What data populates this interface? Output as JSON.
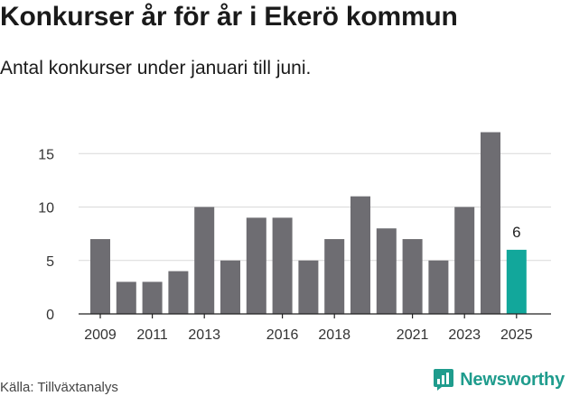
{
  "title": "Konkurser år för år i Ekerö kommun",
  "subtitle": "Antal konkurser under januari till juni.",
  "source": "Källa: Tillväxtanalys",
  "brand": {
    "name": "Newsworthy",
    "icon": "newsworthy-logo-icon"
  },
  "colors": {
    "bar": "#6e6d72",
    "highlight": "#12a79b",
    "grid": "#d9d9d9",
    "axis": "#222222",
    "brand": "#1f9c8d"
  },
  "chart_data": {
    "type": "bar",
    "categories": [
      "2009",
      "2010",
      "2011",
      "2012",
      "2013",
      "2014",
      "2015",
      "2016",
      "2017",
      "2018",
      "2019",
      "2020",
      "2021",
      "2022",
      "2023",
      "2024",
      "2025"
    ],
    "values": [
      7,
      3,
      3,
      4,
      10,
      5,
      9,
      9,
      5,
      7,
      11,
      8,
      7,
      5,
      10,
      17,
      6
    ],
    "x_tick_labels": [
      "2009",
      "2011",
      "2013",
      "2016",
      "2018",
      "2021",
      "2023",
      "2025"
    ],
    "y_ticks": [
      0,
      5,
      10,
      15
    ],
    "ylim": [
      0,
      18.5
    ],
    "highlight_index": 16,
    "data_labels": [
      {
        "index": 16,
        "text": "6"
      }
    ],
    "grid": true,
    "title": "Konkurser år för år i Ekerö kommun",
    "xlabel": "",
    "ylabel": ""
  }
}
